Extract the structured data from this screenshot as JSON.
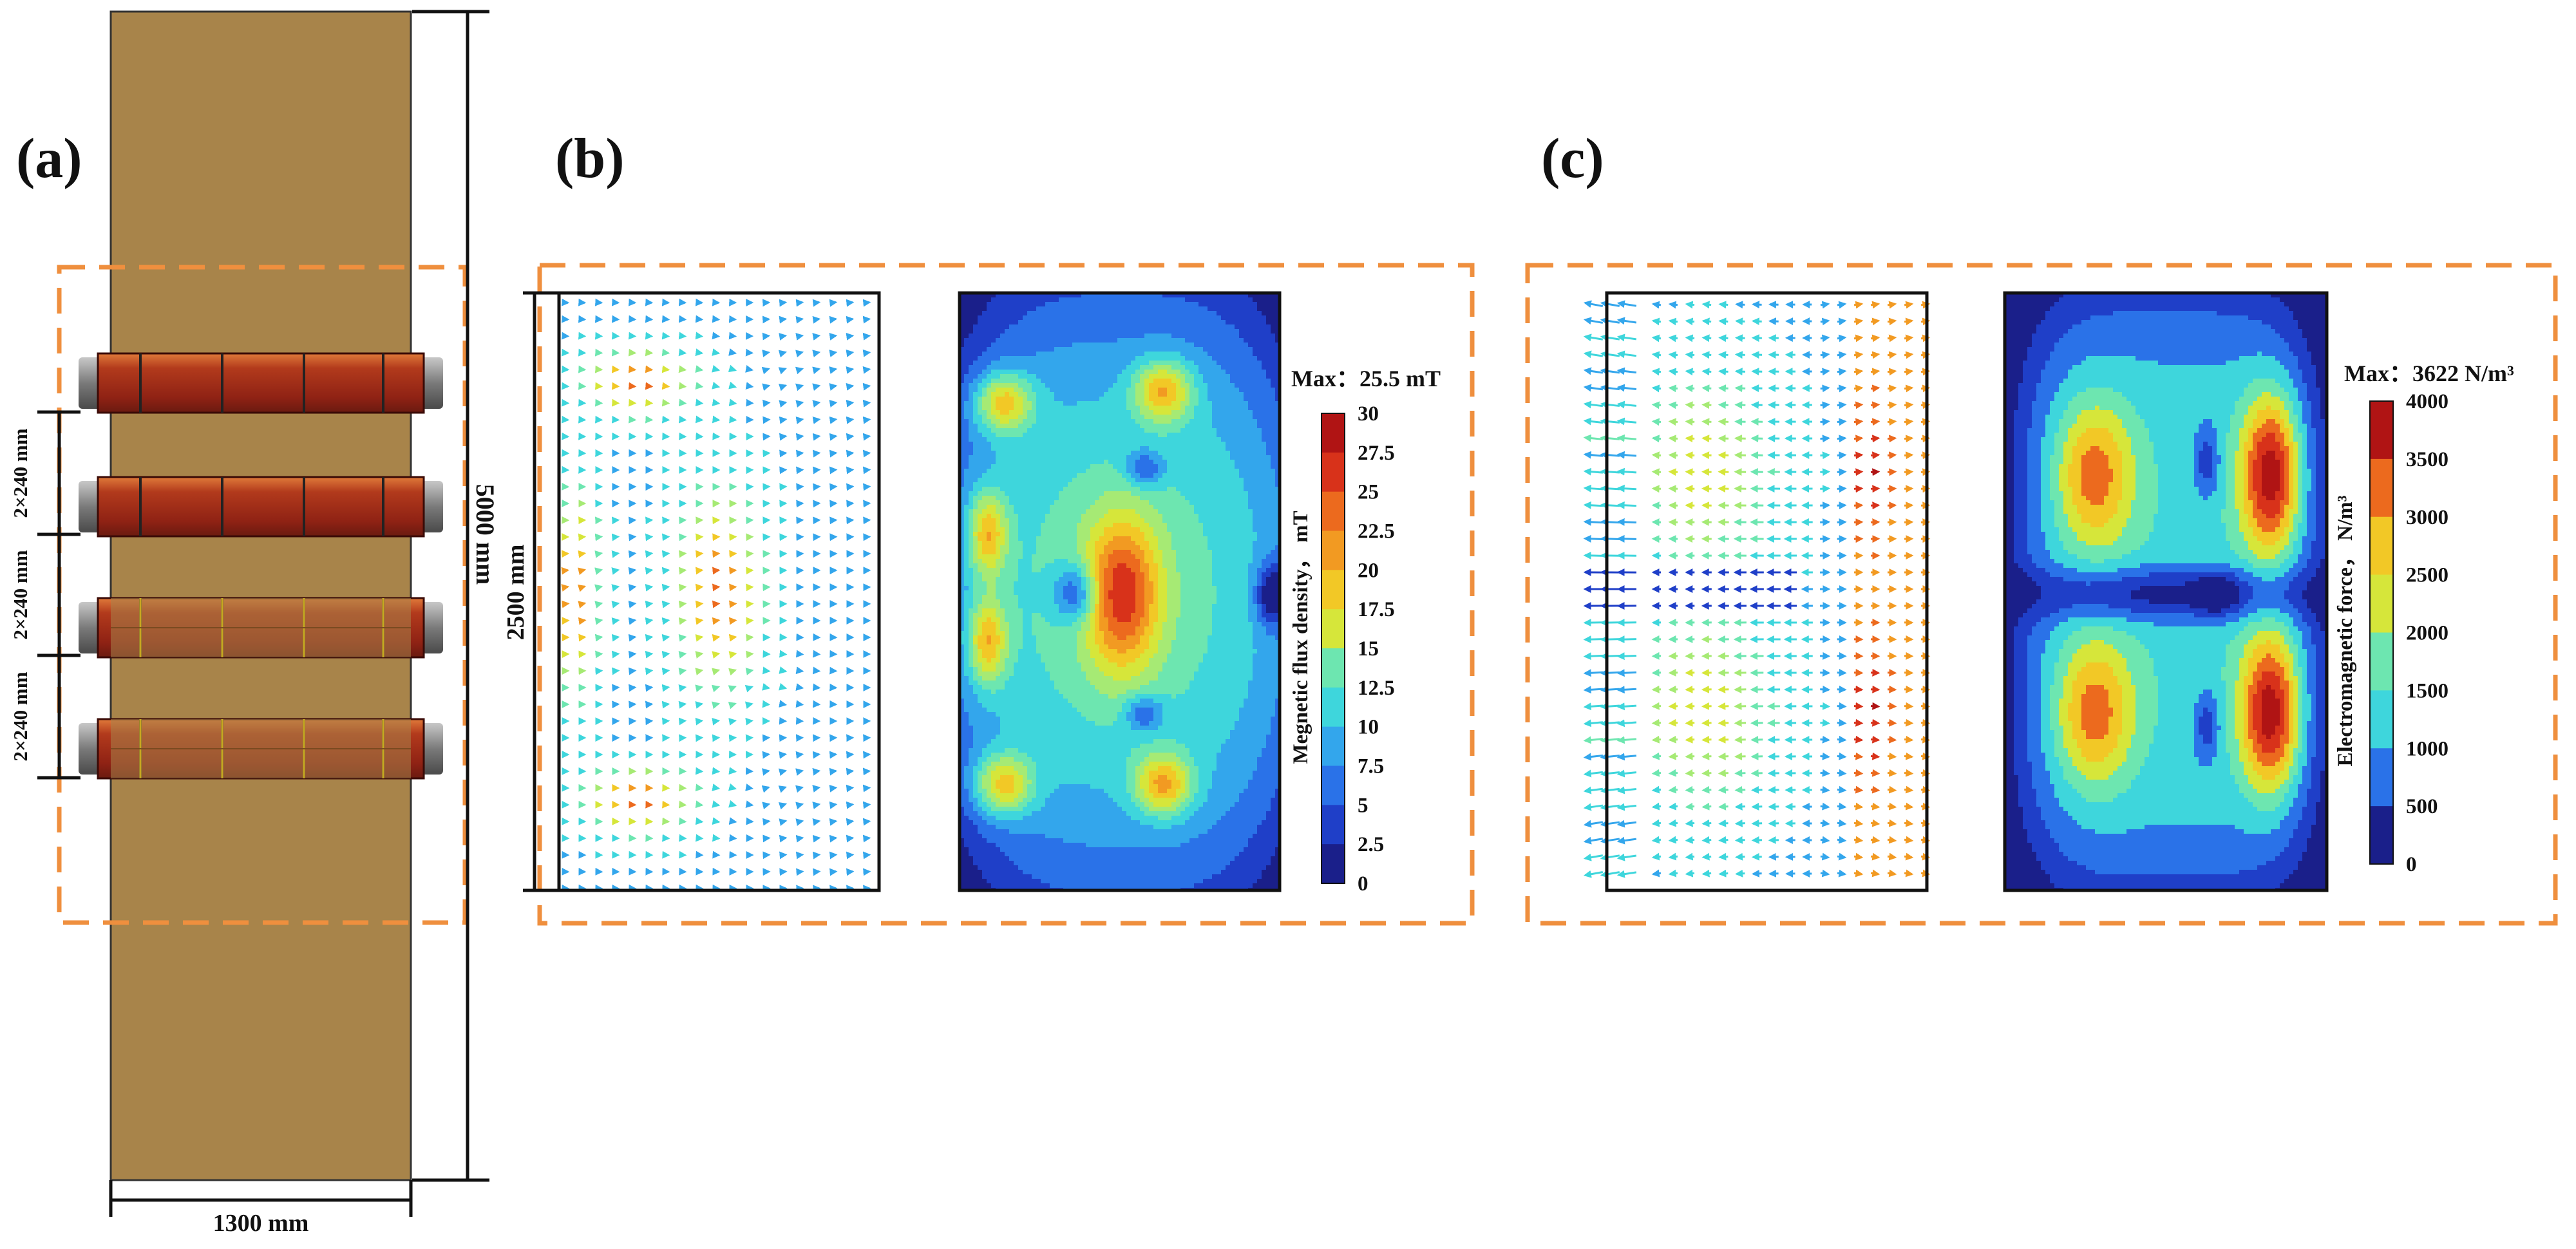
{
  "panels": {
    "a": {
      "label": "(a)",
      "dim_total_height": "5000 mm",
      "dim_width": "1300 mm",
      "dim_spacing": [
        "2×240 mm",
        "2×240 mm",
        "2×240 mm"
      ]
    },
    "b": {
      "label": "(b)",
      "dim_height": "2500 mm",
      "max_text": "Max：25.5 mT",
      "colorbar_title": "Megnetic flux density，  mT",
      "ticks": [
        "30",
        "27.5",
        "25",
        "22.5",
        "20",
        "17.5",
        "15",
        "12.5",
        "10",
        "7.5",
        "5",
        "2.5",
        "0"
      ]
    },
    "c": {
      "label": "(c)",
      "max_text": "Max：3622 N/m³",
      "colorbar_title": "Electromagnetic force，  N/m³",
      "ticks": [
        "4000",
        "3500",
        "3000",
        "2500",
        "2000",
        "1500",
        "1000",
        "500",
        "0"
      ]
    }
  },
  "colors": {
    "ingot": "#a8844a",
    "coil": "#9c2a18",
    "cap": "#8a8a8a",
    "dash": "#ef8f3e",
    "jet": [
      "#1a1f8a",
      "#1f3fc8",
      "#2a72e8",
      "#33a6ec",
      "#3ed6dc",
      "#6de6b0",
      "#a6ea74",
      "#d6e63a",
      "#f2c826",
      "#f29a22",
      "#ec6a1e",
      "#d8321a",
      "#b01414"
    ]
  }
}
